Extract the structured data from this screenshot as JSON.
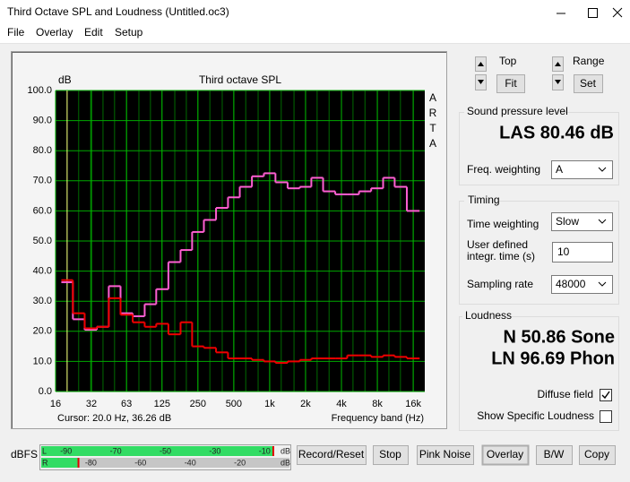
{
  "window": {
    "title": "Third Octave SPL and Loudness (Untitled.oc3)"
  },
  "menu": [
    "File",
    "Overlay",
    "Edit",
    "Setup"
  ],
  "chart_data": {
    "type": "step",
    "title": "Third octave SPL",
    "y_label": "dB",
    "x_label": "Frequency band (Hz)",
    "side_label": "ARTA",
    "cursor": "Cursor:   20.0 Hz, 36.26 dB",
    "cursor_x": 20,
    "log_x": true,
    "grid": true,
    "x": [
      20,
      25,
      31.5,
      40,
      50,
      63,
      80,
      100,
      125,
      160,
      200,
      250,
      315,
      400,
      500,
      630,
      800,
      1000,
      1250,
      1600,
      2000,
      2500,
      3150,
      4000,
      5000,
      6300,
      8000,
      10000,
      12500,
      16000
    ],
    "xlim": [
      16,
      20000
    ],
    "xticks": [
      16,
      32,
      63,
      125,
      250,
      500,
      {
        "value": 1000,
        "label": "1k"
      },
      {
        "value": 2000,
        "label": "2k"
      },
      {
        "value": 4000,
        "label": "4k"
      },
      {
        "value": 8000,
        "label": "8k"
      },
      {
        "value": 16000,
        "label": "16k"
      }
    ],
    "ylim": [
      0,
      100
    ],
    "yticks": [
      {
        "value": 0,
        "label": "0.0"
      },
      {
        "value": 10,
        "label": "10.0"
      },
      {
        "value": 20,
        "label": "20.0"
      },
      {
        "value": 30,
        "label": "30.0"
      },
      {
        "value": 40,
        "label": "40.0"
      },
      {
        "value": 50,
        "label": "50.0"
      },
      {
        "value": 60,
        "label": "60.0"
      },
      {
        "value": 70,
        "label": "70.0"
      },
      {
        "value": 80,
        "label": "80.0"
      },
      {
        "value": 90,
        "label": "90.0"
      },
      {
        "value": 100,
        "label": "100.0"
      }
    ],
    "series": [
      {
        "color": "#ff5fd2",
        "values": [
          36.3,
          24,
          20.5,
          21.5,
          35,
          26,
          25,
          29,
          34,
          43,
          47,
          53,
          57,
          61,
          64.5,
          68,
          71.5,
          72.5,
          69.5,
          67.5,
          68,
          71,
          66.5,
          65.5,
          65.5,
          66.5,
          67.5,
          71,
          68,
          60
        ]
      },
      {
        "color": "#f00000",
        "values": [
          37,
          26,
          21,
          21.5,
          31,
          25.5,
          23,
          21.5,
          22.5,
          19,
          23,
          15,
          14.5,
          13,
          11,
          11,
          10.5,
          10,
          9.5,
          10,
          10.5,
          11,
          11,
          11,
          12,
          12,
          11.5,
          12,
          11.5,
          11
        ]
      }
    ]
  },
  "controls": {
    "top": {
      "label": "Top",
      "button": "Fit"
    },
    "range": {
      "label": "Range",
      "button": "Set"
    }
  },
  "spl": {
    "title": "Sound pressure level",
    "reading": "LAS 80.46 dB",
    "freq_weighting": {
      "label": "Freq. weighting",
      "value": "A"
    }
  },
  "timing": {
    "title": "Timing",
    "time_weighting": {
      "label": "Time weighting",
      "value": "Slow"
    },
    "integration_time": {
      "label": [
        "User defined",
        "integr. time (s)"
      ],
      "value": "10"
    },
    "sampling_rate": {
      "label": "Sampling rate",
      "value": "48000"
    }
  },
  "loudness": {
    "title": "Loudness",
    "n": "N 50.86 Sone",
    "ln": "LN 96.69 Phon",
    "diffuse_field": {
      "label": "Diffuse field",
      "checked": true
    },
    "specific": {
      "label": "Show Specific Loudness",
      "checked": false
    }
  },
  "meter": {
    "label": "dBFS",
    "unit": "dB",
    "xlim": [
      -100,
      0
    ],
    "channels": [
      {
        "name": "L",
        "level": -6.5,
        "ticks": [
          -90,
          -70,
          -50,
          -30,
          -10
        ]
      },
      {
        "name": "R",
        "level": -85,
        "ticks": [
          -80,
          -60,
          -40,
          -20
        ]
      }
    ]
  },
  "buttons": [
    "Record/Reset",
    "Stop",
    "Pink Noise",
    "Overlay",
    "B/W",
    "Copy"
  ]
}
